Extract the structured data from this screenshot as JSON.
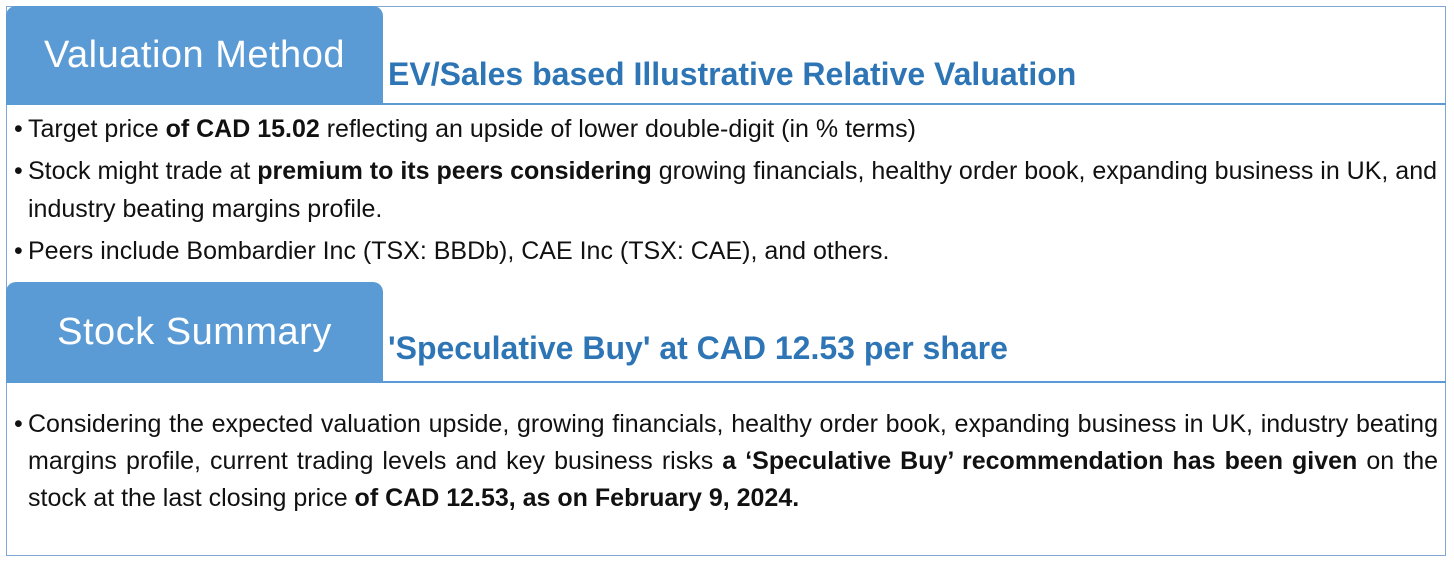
{
  "valuation": {
    "tab_label": "Valuation Method",
    "subtitle": "EV/Sales based Illustrative Relative Valuation",
    "bullets": [
      {
        "parts": [
          {
            "text": "Target price ",
            "bold": false
          },
          {
            "text": "of CAD 15.02",
            "bold": true
          },
          {
            "text": " reflecting an upside of lower double-digit (in % terms)",
            "bold": false
          }
        ]
      },
      {
        "parts": [
          {
            "text": "Stock might trade at ",
            "bold": false
          },
          {
            "text": "premium to its peers considering",
            "bold": true
          },
          {
            "text": " growing financials, healthy order book, expanding business in UK, and industry beating margins profile.",
            "bold": false
          }
        ]
      },
      {
        "parts": [
          {
            "text": "Peers include Bombardier Inc (TSX: BBDb), CAE Inc (TSX: CAE), and others.",
            "bold": false
          }
        ]
      }
    ]
  },
  "summary": {
    "tab_label": "Stock Summary",
    "subtitle": "'Speculative Buy' at CAD 12.53 per share",
    "bullets": [
      {
        "parts": [
          {
            "text": "Considering the expected valuation upside, growing financials, healthy order book, expanding business in UK, industry beating margins profile, current trading levels and key business risks ",
            "bold": false
          },
          {
            "text": "a ‘Speculative Buy’ recommendation has been given",
            "bold": true
          },
          {
            "text": " on the stock at the last closing price ",
            "bold": false
          },
          {
            "text": "of CAD 12.53, as on February 9, 2024.",
            "bold": true
          }
        ]
      }
    ]
  },
  "bullet_glyph": "•"
}
